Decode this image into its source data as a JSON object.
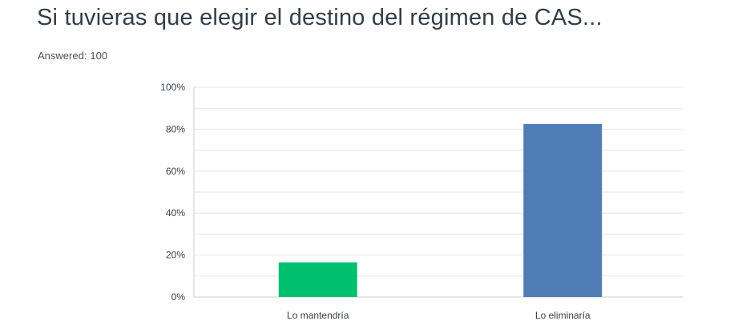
{
  "header": {
    "title": "Si tuvieras que elegir el destino del régimen de CAS...",
    "answered_label": "Answered:",
    "answered_count": "100"
  },
  "chart_data": {
    "type": "bar",
    "categories": [
      "Lo mantendría",
      "Lo eliminaría"
    ],
    "values": [
      16.5,
      82.5
    ],
    "value_unit": "%",
    "ylim": [
      0,
      100
    ],
    "yticks": [
      "0%",
      "20%",
      "40%",
      "60%",
      "80%",
      "100%"
    ],
    "ytick_values": [
      0,
      20,
      40,
      60,
      80,
      100
    ],
    "minor_gridlines": true,
    "bar_colors": [
      "#00bf6f",
      "#507cb6"
    ],
    "gridline_color": "#e6e6e6",
    "axis_color": "#cfcfcf"
  }
}
